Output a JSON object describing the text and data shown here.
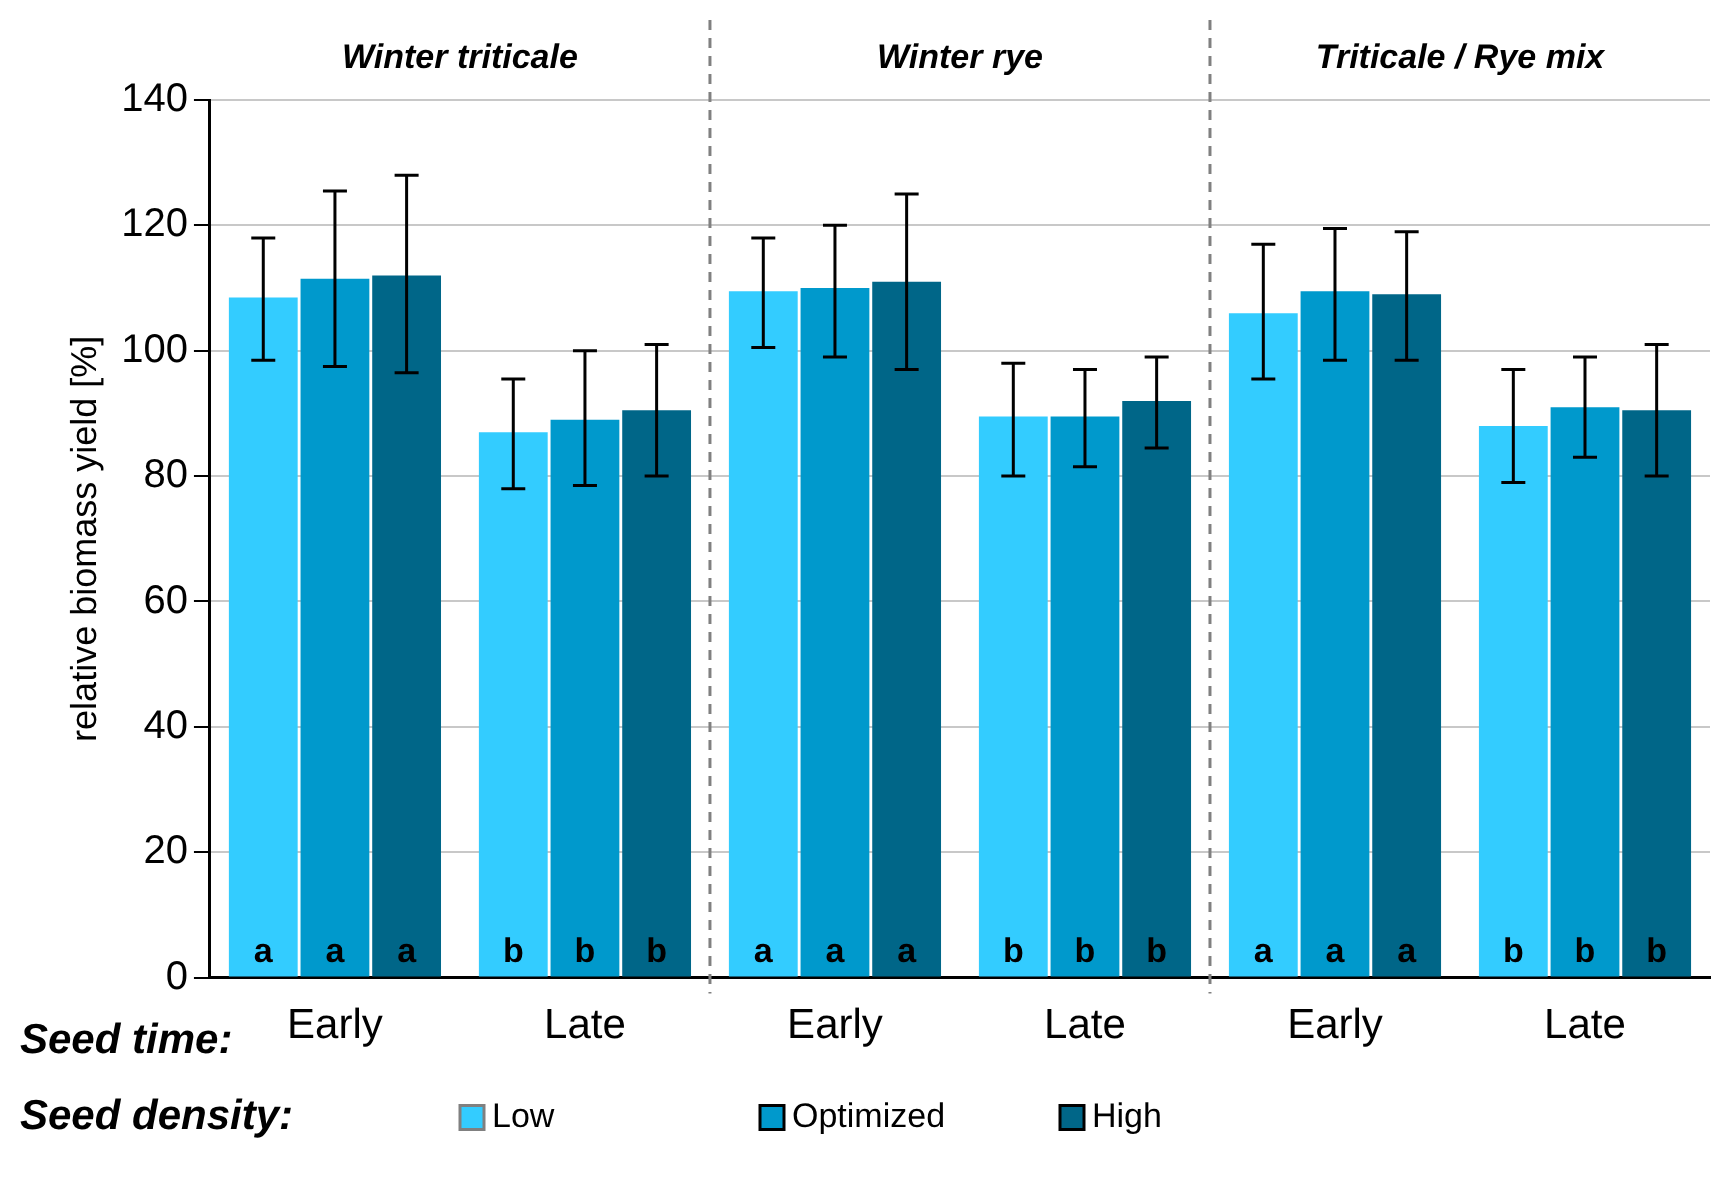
{
  "chart_data": {
    "type": "bar",
    "xlabel": "Seed time:",
    "ylabel": "relative biomass yield [%]",
    "legend_title": "Seed density:",
    "legend": "bottom",
    "grid": "y",
    "categories": [
      "Early",
      "Late",
      "Early",
      "Late",
      "Early",
      "Late"
    ],
    "annotations": [
      "Winter triticale",
      "Winter rye",
      "Triticale / Rye mix"
    ],
    "ylim": [
      0,
      140
    ],
    "yticks": [
      0,
      20,
      40,
      60,
      80,
      100,
      120,
      140
    ],
    "series": [
      {
        "name": "Low",
        "color": "#33ccff",
        "values": [
          108.5,
          87,
          109.5,
          89.5,
          106,
          88
        ],
        "errors": [
          [
            98.5,
            118
          ],
          [
            78,
            95.5
          ],
          [
            100.5,
            118
          ],
          [
            80,
            98
          ],
          [
            95.5,
            117
          ],
          [
            79,
            97
          ]
        ],
        "value_labels": [
          "a",
          "b",
          "a",
          "b",
          "a",
          "b"
        ]
      },
      {
        "name": "Optimized",
        "color": "#0099cc",
        "values": [
          111.5,
          89,
          110,
          89.5,
          109.5,
          91
        ],
        "errors": [
          [
            97.5,
            125.5
          ],
          [
            78.5,
            100
          ],
          [
            99,
            120
          ],
          [
            81.5,
            97
          ],
          [
            98.5,
            119.5
          ],
          [
            83,
            99
          ]
        ],
        "value_labels": [
          "a",
          "b",
          "a",
          "b",
          "a",
          "b"
        ]
      },
      {
        "name": "High",
        "color": "#006688",
        "values": [
          112,
          90.5,
          111,
          92,
          109,
          90.5
        ],
        "errors": [
          [
            96.5,
            128
          ],
          [
            80,
            101
          ],
          [
            97,
            125
          ],
          [
            84.5,
            99
          ],
          [
            98.5,
            119
          ],
          [
            80,
            101
          ]
        ],
        "value_labels": [
          "a",
          "b",
          "a",
          "b",
          "a",
          "b"
        ]
      }
    ]
  }
}
